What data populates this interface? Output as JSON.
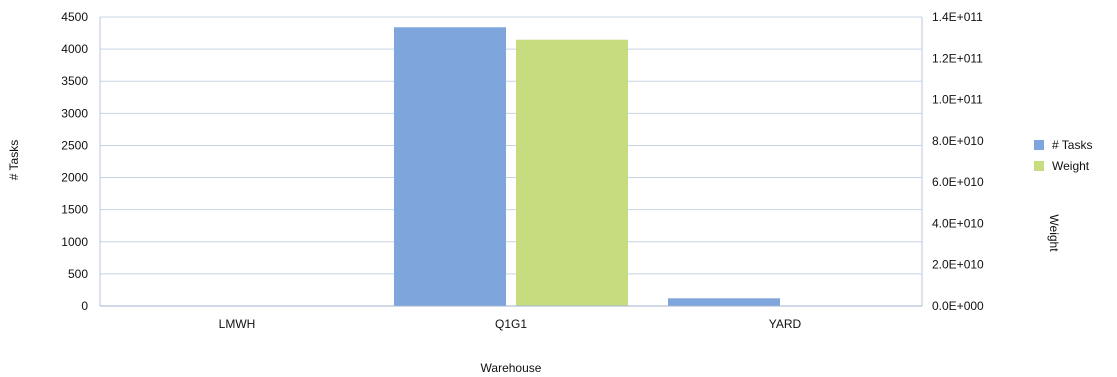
{
  "chart_data": {
    "type": "bar",
    "categories": [
      "LMWH",
      "Q1G1",
      "YARD"
    ],
    "series": [
      {
        "name": "# Tasks",
        "axis": "left",
        "color": "#7fa6dc",
        "values": [
          0,
          4340,
          120
        ]
      },
      {
        "name": "Weight",
        "axis": "right",
        "color": "#c6dc7f",
        "values": [
          0,
          129000000000,
          0
        ]
      }
    ],
    "xlabel": "Warehouse",
    "ylabel": "# Tasks",
    "y2label": "Weight",
    "ylim": [
      0,
      4500
    ],
    "y2lim": [
      0,
      140000000000
    ],
    "yticks": [
      "0",
      "500",
      "1000",
      "1500",
      "2000",
      "2500",
      "3000",
      "3500",
      "4000",
      "4500"
    ],
    "y2ticks": [
      "0.0E+000",
      "2.0E+010",
      "4.0E+010",
      "6.0E+010",
      "8.0E+010",
      "1.0E+011",
      "1.2E+011",
      "1.4E+011"
    ],
    "grid": true,
    "legend_position": "right"
  }
}
